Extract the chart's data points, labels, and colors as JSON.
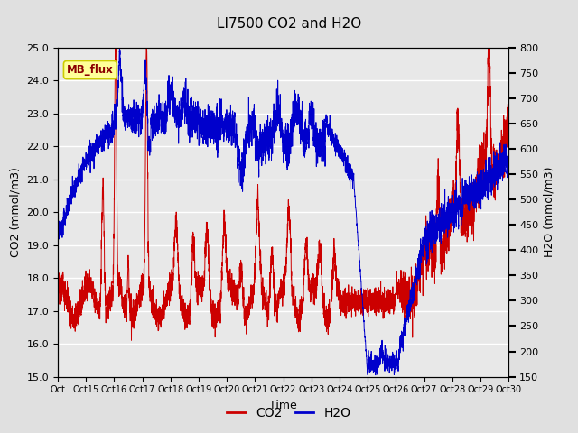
{
  "title": "LI7500 CO2 and H2O",
  "xlabel": "Time",
  "ylabel_left": "CO2 (mmol/m3)",
  "ylabel_right": "H2O (mmol/m3)",
  "co2_ylim": [
    15.0,
    25.0
  ],
  "h2o_ylim": [
    150,
    800
  ],
  "co2_yticks": [
    15.0,
    16.0,
    17.0,
    18.0,
    19.0,
    20.0,
    21.0,
    22.0,
    23.0,
    24.0,
    25.0
  ],
  "h2o_yticks": [
    150,
    200,
    250,
    300,
    350,
    400,
    450,
    500,
    550,
    600,
    650,
    700,
    750,
    800
  ],
  "xtick_labels": [
    "Oct 15",
    "Oct 16",
    "Oct 17",
    "Oct 18",
    "Oct 19",
    "Oct 20",
    "Oct 21",
    "Oct 22",
    "Oct 23",
    "Oct 24",
    "Oct 25",
    "Oct 26",
    "Oct 27",
    "Oct 28",
    "Oct 29",
    "Oct 30"
  ],
  "co2_color": "#cc0000",
  "h2o_color": "#0000cc",
  "fig_bg_color": "#e0e0e0",
  "plot_bg_color": "#e8e8e8",
  "legend_label_co2": "CO2",
  "legend_label_h2o": "H2O",
  "annotation_text": "MB_flux",
  "annotation_bg": "#ffff99",
  "annotation_border": "#cccc00",
  "title_fontsize": 11,
  "axis_fontsize": 9,
  "tick_fontsize": 8
}
